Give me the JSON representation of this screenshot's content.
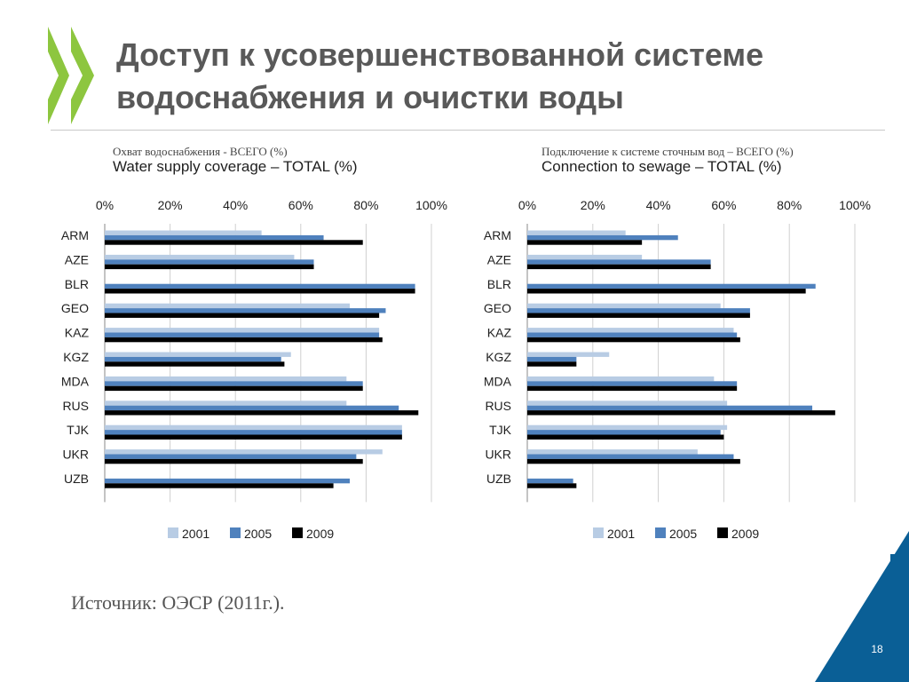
{
  "slide": {
    "title": "Доступ к усовершенствованной системе водоснабжения и очистки воды",
    "source": "Источник: ОЭСР (2011г.).",
    "page_number": "18",
    "logo_icon": "oecd-chevron-logo",
    "colors": {
      "logo_green": "#8dc63f",
      "accent_blue": "#0a5f96",
      "title_grey": "#595959"
    }
  },
  "captions": {
    "left_ru": "Охват водоснабжения  - ВСЕГО (%)",
    "right_ru": "Подключение к системе сточным вод – ВСЕГО (%)"
  },
  "chart_data": [
    {
      "type": "bar",
      "orientation": "horizontal",
      "title": "Water supply coverage – TOTAL (%)",
      "categories": [
        "ARM",
        "AZE",
        "BLR",
        "GEO",
        "KAZ",
        "KGZ",
        "MDA",
        "RUS",
        "TJK",
        "UKR",
        "UZB"
      ],
      "series": [
        {
          "name": "2001",
          "color": "#b8cce4",
          "values": [
            48,
            58,
            null,
            75,
            84,
            57,
            74,
            74,
            91,
            85,
            null
          ]
        },
        {
          "name": "2005",
          "color": "#4f81bd",
          "values": [
            67,
            64,
            95,
            86,
            84,
            54,
            79,
            90,
            91,
            77,
            75
          ]
        },
        {
          "name": "2009",
          "color": "#000000",
          "values": [
            79,
            64,
            95,
            84,
            85,
            55,
            79,
            96,
            91,
            79,
            70
          ]
        }
      ],
      "xlim": [
        0,
        100
      ],
      "ticks": [
        "0%",
        "20%",
        "40%",
        "60%",
        "80%",
        "100%"
      ],
      "grid": true,
      "legend": "bottom"
    },
    {
      "type": "bar",
      "orientation": "horizontal",
      "title": "Connection to sewage – TOTAL (%)",
      "categories": [
        "ARM",
        "AZE",
        "BLR",
        "GEO",
        "KAZ",
        "KGZ",
        "MDA",
        "RUS",
        "TJK",
        "UKR",
        "UZB"
      ],
      "series": [
        {
          "name": "2001",
          "color": "#b8cce4",
          "values": [
            30,
            35,
            null,
            59,
            63,
            25,
            57,
            61,
            61,
            52,
            null
          ]
        },
        {
          "name": "2005",
          "color": "#4f81bd",
          "values": [
            46,
            56,
            88,
            68,
            64,
            15,
            64,
            87,
            59,
            63,
            14
          ]
        },
        {
          "name": "2009",
          "color": "#000000",
          "values": [
            35,
            56,
            85,
            68,
            65,
            15,
            64,
            94,
            60,
            65,
            15
          ]
        }
      ],
      "xlim": [
        0,
        100
      ],
      "ticks": [
        "0%",
        "20%",
        "40%",
        "60%",
        "80%",
        "100%"
      ],
      "grid": true,
      "legend": "bottom"
    }
  ]
}
